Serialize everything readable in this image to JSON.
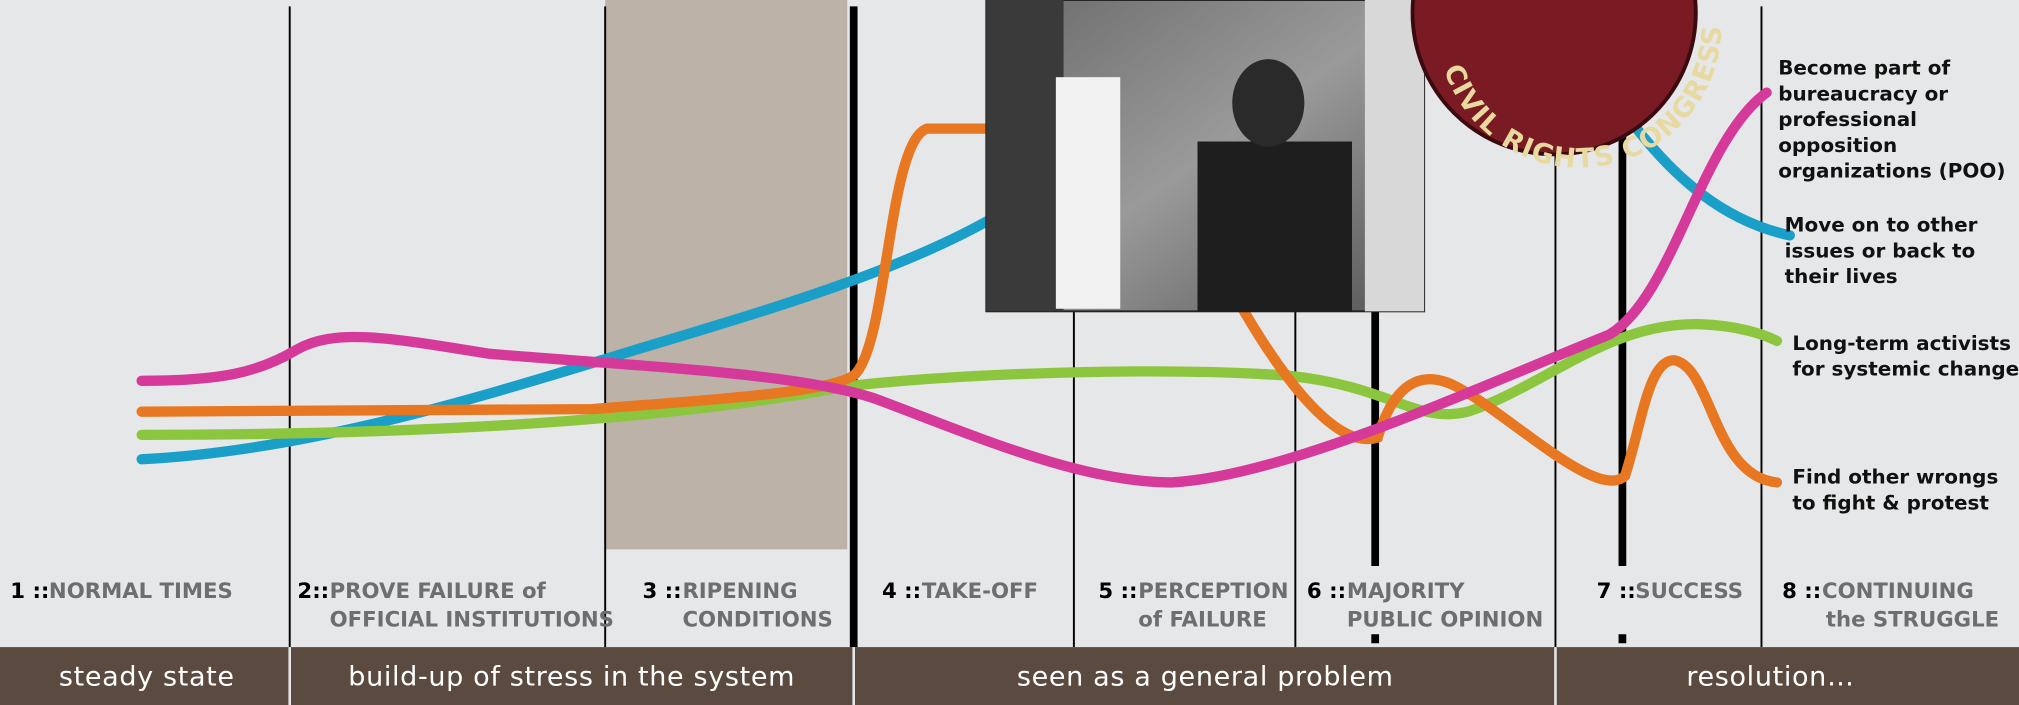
{
  "stages": [
    {
      "number": "1 ::",
      "lines": [
        "NORMAL TIMES"
      ]
    },
    {
      "number": "2::",
      "lines": [
        "PROVE FAILURE of",
        "OFFICIAL INSTITUTIONS"
      ]
    },
    {
      "number": "3 ::",
      "lines": [
        "RIPENING",
        "CONDITIONS"
      ]
    },
    {
      "number": "4 ::",
      "lines": [
        "TAKE-OFF"
      ]
    },
    {
      "number": "5 ::",
      "lines": [
        "PERCEPTION",
        "of FAILURE"
      ]
    },
    {
      "number": "6 ::",
      "lines": [
        "MAJORITY",
        "PUBLIC OPINION"
      ]
    },
    {
      "number": "7 ::",
      "lines": [
        "SUCCESS"
      ]
    },
    {
      "number": "8 ::",
      "lines": [
        "CONTINUING",
        "the STRUGGLE"
      ]
    }
  ],
  "phases": [
    "steady state",
    "build-up of stress in the system",
    "seen as a general problem",
    "resolution…"
  ],
  "outcomes": [
    {
      "lines": [
        "Become part of",
        "bureaucracy or",
        "professional",
        "opposition",
        "organizations (POO)"
      ]
    },
    {
      "lines": [
        "Move on to other",
        "issues or back to",
        "their lives"
      ]
    },
    {
      "lines": [
        "Long-term activists",
        "for systemic change"
      ]
    },
    {
      "lines": [
        "Find other wrongs",
        "to fight & protest"
      ]
    }
  ],
  "badge": {
    "text": "CIVIL RIGHTS CONGRESS"
  }
}
